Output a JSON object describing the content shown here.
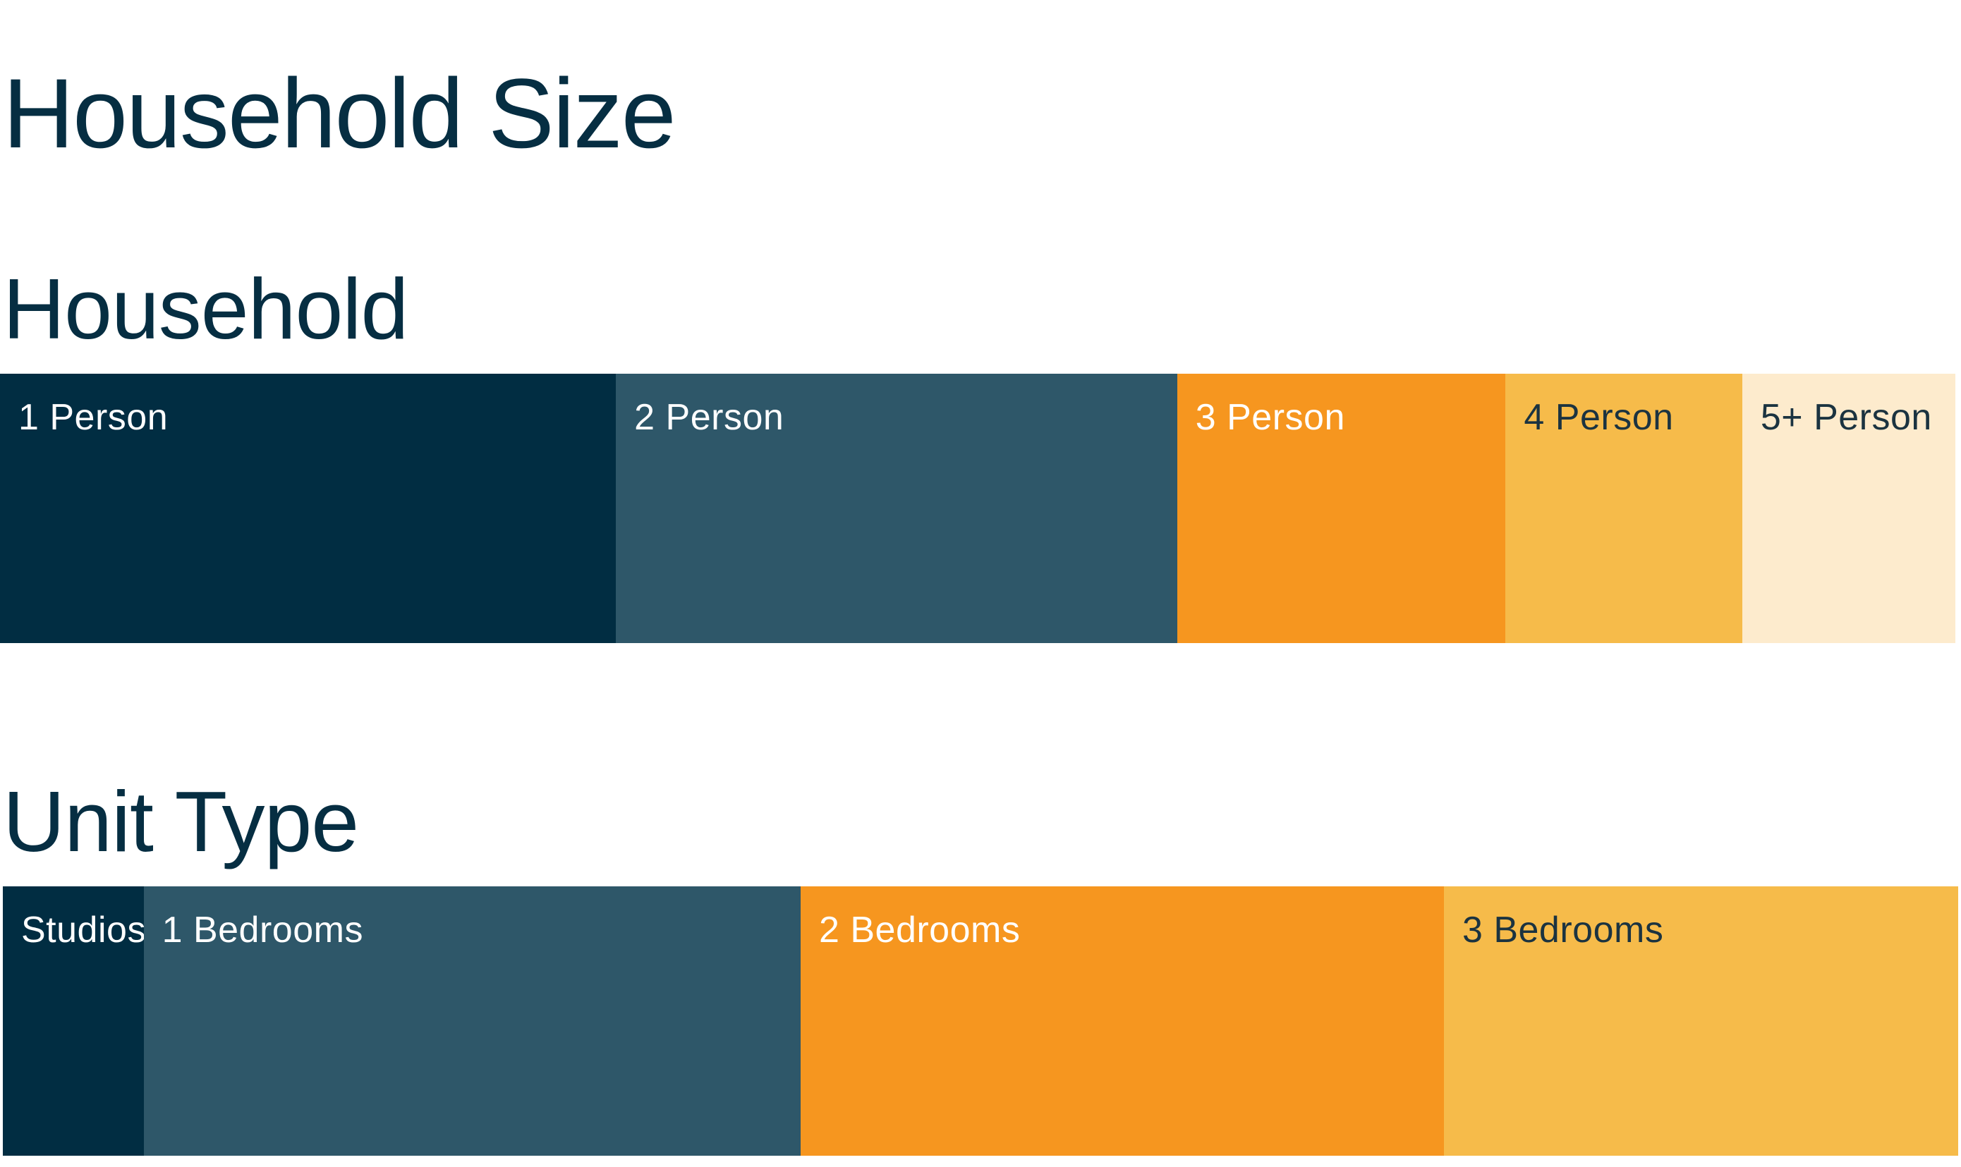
{
  "title": "Household Size",
  "chart_data": [
    {
      "type": "bar",
      "stacked": "100%",
      "orientation": "horizontal",
      "title": "Household",
      "categories": [
        "1 Person",
        "2 Person",
        "3 Person",
        "4 Person",
        "5+ Person"
      ],
      "values": [
        31.5,
        28.7,
        16.8,
        12.1,
        10.9
      ],
      "colors": [
        "#012d42",
        "#2e5769",
        "#f6961f",
        "#f6bb4a",
        "#fdebcd"
      ],
      "label_colors": [
        "#ffffff",
        "#ffffff",
        "#ffffff",
        "#1b3340",
        "#1b3340"
      ]
    },
    {
      "type": "bar",
      "stacked": "100%",
      "orientation": "horizontal",
      "title": "Unit Type",
      "categories": [
        "Studios",
        "1 Bedrooms",
        "2 Bedrooms",
        "3 Bedrooms"
      ],
      "values": [
        7.2,
        33.6,
        32.9,
        26.3
      ],
      "colors": [
        "#012d42",
        "#2e5769",
        "#f6961f",
        "#f6bb4a"
      ],
      "label_colors": [
        "#ffffff",
        "#ffffff",
        "#ffffff",
        "#1b3340"
      ]
    }
  ]
}
